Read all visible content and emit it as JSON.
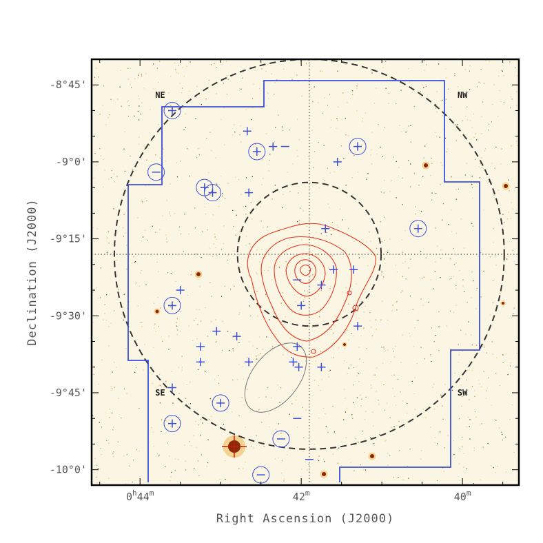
{
  "chart_data": {
    "type": "scatter",
    "title": "",
    "xlabel": "Right Ascension (J2000)",
    "ylabel": "Declination (J2000)",
    "x_tick_labels": [
      {
        "main": "0",
        "sup": "h",
        "rest": "44",
        "sup2": "m",
        "ra_min": 44
      },
      {
        "main": "42",
        "sup": "m",
        "rest": "",
        "sup2": "",
        "ra_min": 42
      },
      {
        "main": "40",
        "sup": "m",
        "rest": "",
        "sup2": "",
        "ra_min": 40
      }
    ],
    "y_tick_labels": [
      {
        "text": "-8°45'",
        "dec_arcmin": -525
      },
      {
        "text": "-9°0'",
        "dec_arcmin": -540
      },
      {
        "text": "-9°15'",
        "dec_arcmin": -555
      },
      {
        "text": "-9°30'",
        "dec_arcmin": -570
      },
      {
        "text": "-9°45'",
        "dec_arcmin": -585
      },
      {
        "text": "-10°0'",
        "dec_arcmin": -600
      }
    ],
    "xlim_ra_min": [
      44.6,
      39.3
    ],
    "ylim_dec_arcmin": [
      -603,
      -520
    ],
    "regions": [
      {
        "label": "NE",
        "ra_min": 43.75,
        "dec_arcmin": -527
      },
      {
        "label": "NW",
        "ra_min": 40.0,
        "dec_arcmin": -527
      },
      {
        "label": "SE",
        "ra_min": 43.75,
        "dec_arcmin": -585
      },
      {
        "label": "SW",
        "ra_min": 40.0,
        "dec_arcmin": -585
      }
    ],
    "cluster_center": {
      "ra_min": 41.9,
      "dec_arcmin": -558
    },
    "dashed_circles_radius_arcmin": [
      14,
      38
    ],
    "galaxies_plus": [
      {
        "ra_min": 42.67,
        "dec_arcmin": -534
      },
      {
        "ra_min": 42.35,
        "dec_arcmin": -537
      },
      {
        "ra_min": 41.55,
        "dec_arcmin": -540
      },
      {
        "ra_min": 42.65,
        "dec_arcmin": -546
      },
      {
        "ra_min": 41.7,
        "dec_arcmin": -553
      },
      {
        "ra_min": 41.6,
        "dec_arcmin": -561
      },
      {
        "ra_min": 41.35,
        "dec_arcmin": -561
      },
      {
        "ra_min": 41.75,
        "dec_arcmin": -564
      },
      {
        "ra_min": 43.5,
        "dec_arcmin": -565
      },
      {
        "ra_min": 42.0,
        "dec_arcmin": -568
      },
      {
        "ra_min": 43.05,
        "dec_arcmin": -573
      },
      {
        "ra_min": 42.8,
        "dec_arcmin": -574
      },
      {
        "ra_min": 41.3,
        "dec_arcmin": -572
      },
      {
        "ra_min": 43.25,
        "dec_arcmin": -576
      },
      {
        "ra_min": 43.25,
        "dec_arcmin": -579
      },
      {
        "ra_min": 42.65,
        "dec_arcmin": -579
      },
      {
        "ra_min": 42.1,
        "dec_arcmin": -579
      },
      {
        "ra_min": 42.03,
        "dec_arcmin": -580
      },
      {
        "ra_min": 41.75,
        "dec_arcmin": -580
      },
      {
        "ra_min": 43.6,
        "dec_arcmin": -584
      },
      {
        "ra_min": 42.05,
        "dec_arcmin": -576
      }
    ],
    "galaxies_minus": [
      {
        "ra_min": 42.2,
        "dec_arcmin": -537
      },
      {
        "ra_min": 42.05,
        "dec_arcmin": -563
      },
      {
        "ra_min": 42.05,
        "dec_arcmin": -590
      },
      {
        "ra_min": 41.9,
        "dec_arcmin": -598
      }
    ],
    "circled_plus": [
      {
        "ra_min": 43.6,
        "dec_arcmin": -530
      },
      {
        "ra_min": 42.55,
        "dec_arcmin": -538
      },
      {
        "ra_min": 41.3,
        "dec_arcmin": -537
      },
      {
        "ra_min": 43.2,
        "dec_arcmin": -545
      },
      {
        "ra_min": 43.1,
        "dec_arcmin": -546
      },
      {
        "ra_min": 40.55,
        "dec_arcmin": -553
      },
      {
        "ra_min": 43.6,
        "dec_arcmin": -568
      },
      {
        "ra_min": 43.0,
        "dec_arcmin": -587
      },
      {
        "ra_min": 43.6,
        "dec_arcmin": -591
      }
    ],
    "circled_minus": [
      {
        "ra_min": 43.8,
        "dec_arcmin": -542
      },
      {
        "ra_min": 42.25,
        "dec_arcmin": -594
      },
      {
        "ra_min": 42.5,
        "dec_arcmin": -601
      }
    ],
    "colors": {
      "background": "#fbf5e4",
      "galaxy_marks": "#3b4fd6",
      "mosaic_outline": "#3b4fd6",
      "xray_contours": "#e8341c",
      "dashed_circles": "#333333",
      "bright_star": "#c0200a"
    }
  }
}
